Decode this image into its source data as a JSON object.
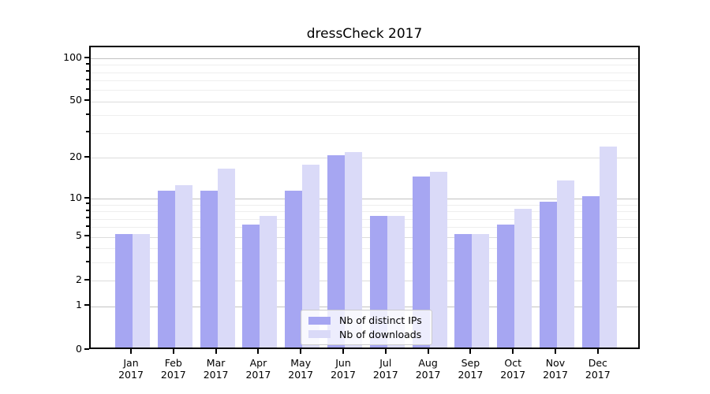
{
  "chart_data": {
    "type": "bar",
    "title": "dressCheck 2017",
    "year": "2017",
    "categories": [
      "Jan",
      "Feb",
      "Mar",
      "Apr",
      "May",
      "Jun",
      "Jul",
      "Aug",
      "Sep",
      "Oct",
      "Nov",
      "Dec"
    ],
    "series": [
      {
        "name": "Nb of distinct IPs",
        "color": "#a6a6f2",
        "values": [
          5,
          11,
          11,
          6,
          11,
          20,
          7,
          14,
          5,
          6,
          9,
          10
        ]
      },
      {
        "name": "Nb of downloads",
        "color": "#dadaf8",
        "values": [
          5,
          12,
          16,
          7,
          17,
          21,
          7,
          15,
          5,
          8,
          13,
          23
        ]
      }
    ],
    "scale": "log1p",
    "ylim": [
      0,
      120
    ],
    "y_ticks": [
      0,
      1,
      2,
      5,
      10,
      20,
      50,
      100
    ],
    "y_minor_ticks": [
      3,
      4,
      6,
      7,
      8,
      9,
      30,
      40,
      60,
      70,
      80,
      90
    ],
    "grid": "on",
    "legend_position": "lower-center",
    "colors": {
      "grid_major": "#c2c2c2",
      "grid_mid": "#dcdcdc",
      "grid_minor": "#eeeeee",
      "axis": "#000000",
      "background": "#ffffff"
    }
  }
}
